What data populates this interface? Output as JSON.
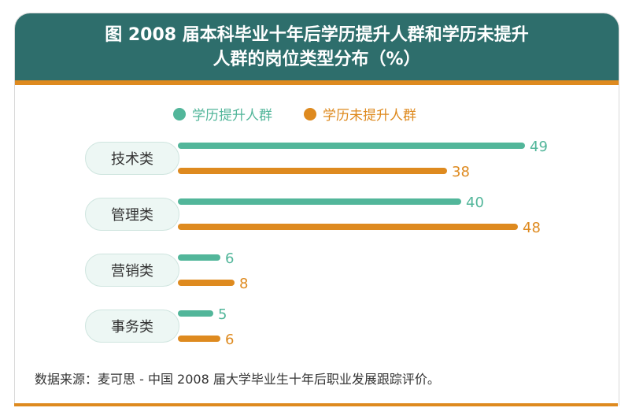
{
  "header": {
    "title_line1": "图  2008 届本科毕业十年后学历提升人群和学历未提升",
    "title_line2": "人群的岗位类型分布（%）"
  },
  "colors": {
    "header_bg": "#2e6e6c",
    "accent": "#de8a1f",
    "series_upgraded": "#52b69a",
    "series_not_upgraded": "#de8a1f"
  },
  "legend": {
    "items": [
      {
        "label": "学历提升人群",
        "color": "#52b69a"
      },
      {
        "label": "学历未提升人群",
        "color": "#de8a1f"
      }
    ]
  },
  "chart_data": {
    "type": "bar",
    "orientation": "horizontal",
    "categories": [
      "技术类",
      "管理类",
      "营销类",
      "事务类"
    ],
    "series": [
      {
        "name": "学历提升人群",
        "color": "#52b69a",
        "values": [
          49,
          40,
          6,
          5
        ]
      },
      {
        "name": "学历未提升人群",
        "color": "#de8a1f",
        "values": [
          38,
          48,
          8,
          6
        ]
      }
    ],
    "xlim": [
      0,
      49
    ],
    "grid": false,
    "legend_position": "top"
  },
  "footer": {
    "source": "数据来源：麦可思 - 中国 2008 届大学毕业生十年后职业发展跟踪评价。"
  }
}
